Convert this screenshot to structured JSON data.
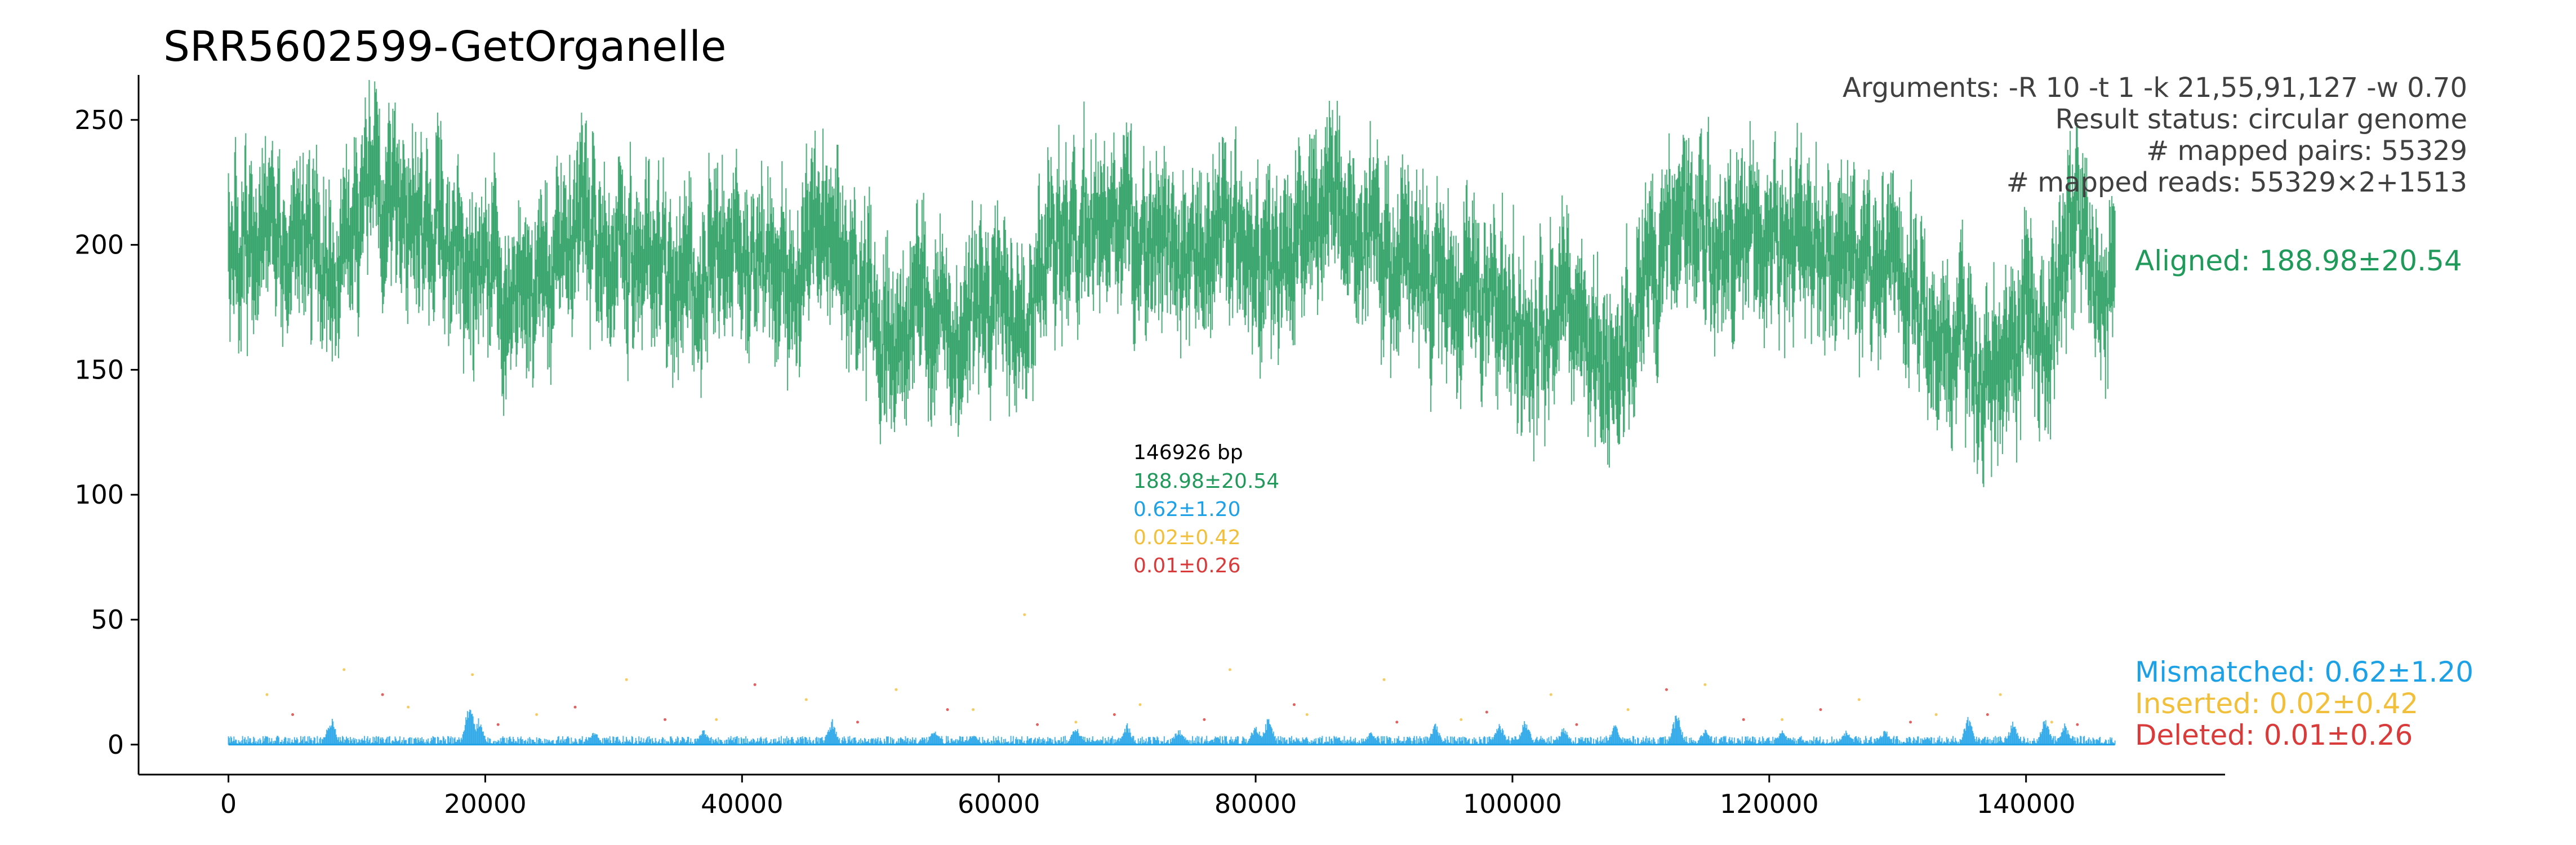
{
  "title": "SRR5602599-GetOrganelle",
  "info_lines": [
    "Arguments: -R 10 -t 1 -k 21,55,91,127 -w 0.70",
    "Result status: circular genome",
    "# mapped pairs: 55329",
    "# mapped reads: 55329×2+1513"
  ],
  "colors": {
    "aligned": "#1f9a5a",
    "mismatched": "#1da1e6",
    "inserted": "#f2bf3a",
    "deleted": "#d93a3a",
    "axis": "#000000",
    "info": "#404040"
  },
  "legend": {
    "aligned": "Aligned: 188.98±20.54",
    "mismatched": "Mismatched: 0.62±1.20",
    "inserted": "Inserted: 0.02±0.42",
    "deleted": "Deleted: 0.01±0.26"
  },
  "summary": {
    "length": "146926 bp",
    "aligned": "188.98±20.54",
    "mismatched": "0.62±1.20",
    "inserted": "0.02±0.42",
    "deleted": "0.01±0.26"
  },
  "chart_data": {
    "type": "scatter",
    "title": "SRR5602599-GetOrganelle",
    "xlabel": "",
    "ylabel": "",
    "xlim": [
      -7000,
      155500
    ],
    "ylim": [
      -12,
      268
    ],
    "x_ticks": [
      0,
      20000,
      40000,
      60000,
      80000,
      100000,
      120000,
      140000
    ],
    "y_ticks": [
      0,
      50,
      100,
      150,
      200,
      250
    ],
    "x_tick_labels": [
      "0",
      "20000",
      "40000",
      "60000",
      "80000",
      "100000",
      "120000",
      "140000"
    ],
    "y_tick_labels": [
      "0",
      "50",
      "100",
      "150",
      "200",
      "250"
    ],
    "grid": false,
    "legend_placement": "right",
    "genome_length": 146926,
    "series": [
      {
        "name": "Aligned",
        "color": "#1f9a5a",
        "mean": 188.98,
        "sd": 20.54,
        "profile": [
          [
            0,
            195
          ],
          [
            3000,
            200
          ],
          [
            6000,
            205
          ],
          [
            9000,
            195
          ],
          [
            11000,
            225
          ],
          [
            13000,
            210
          ],
          [
            16000,
            205
          ],
          [
            19000,
            190
          ],
          [
            22000,
            180
          ],
          [
            25000,
            185
          ],
          [
            27000,
            210
          ],
          [
            30000,
            200
          ],
          [
            33000,
            195
          ],
          [
            36000,
            180
          ],
          [
            38000,
            195
          ],
          [
            40000,
            200
          ],
          [
            42000,
            185
          ],
          [
            44000,
            190
          ],
          [
            46000,
            205
          ],
          [
            48000,
            190
          ],
          [
            50000,
            175
          ],
          [
            52000,
            165
          ],
          [
            54000,
            175
          ],
          [
            56000,
            165
          ],
          [
            58000,
            170
          ],
          [
            60000,
            175
          ],
          [
            62000,
            180
          ],
          [
            64000,
            200
          ],
          [
            66000,
            205
          ],
          [
            68000,
            215
          ],
          [
            70000,
            210
          ],
          [
            72000,
            200
          ],
          [
            74000,
            195
          ],
          [
            76000,
            195
          ],
          [
            78000,
            205
          ],
          [
            80000,
            185
          ],
          [
            82000,
            195
          ],
          [
            84000,
            205
          ],
          [
            86000,
            215
          ],
          [
            88000,
            210
          ],
          [
            90000,
            200
          ],
          [
            92000,
            190
          ],
          [
            94000,
            185
          ],
          [
            96000,
            175
          ],
          [
            98000,
            185
          ],
          [
            100000,
            170
          ],
          [
            102000,
            160
          ],
          [
            104000,
            175
          ],
          [
            106000,
            160
          ],
          [
            108000,
            150
          ],
          [
            110000,
            175
          ],
          [
            112000,
            205
          ],
          [
            114000,
            215
          ],
          [
            116000,
            200
          ],
          [
            118000,
            205
          ],
          [
            120000,
            200
          ],
          [
            122000,
            205
          ],
          [
            124000,
            195
          ],
          [
            126000,
            200
          ],
          [
            128000,
            185
          ],
          [
            130000,
            190
          ],
          [
            132000,
            170
          ],
          [
            134000,
            165
          ],
          [
            136000,
            155
          ],
          [
            138000,
            150
          ],
          [
            140000,
            175
          ],
          [
            142000,
            165
          ],
          [
            144000,
            215
          ],
          [
            145500,
            180
          ],
          [
            146926,
            185
          ]
        ]
      },
      {
        "name": "Mismatched",
        "color": "#1da1e6",
        "mean": 0.62,
        "sd": 1.2,
        "peaks": [
          [
            8000,
            12
          ],
          [
            18800,
            20
          ],
          [
            19500,
            11
          ],
          [
            28500,
            6
          ],
          [
            37000,
            7
          ],
          [
            47000,
            11
          ],
          [
            55000,
            7
          ],
          [
            58000,
            5
          ],
          [
            66000,
            8
          ],
          [
            70000,
            9
          ],
          [
            74000,
            7
          ],
          [
            80000,
            9
          ],
          [
            81000,
            12
          ],
          [
            89000,
            6
          ],
          [
            94000,
            9
          ],
          [
            99000,
            10
          ],
          [
            101000,
            11
          ],
          [
            104000,
            8
          ],
          [
            108000,
            9
          ],
          [
            112800,
            14
          ],
          [
            115000,
            7
          ],
          [
            121000,
            7
          ],
          [
            126000,
            6
          ],
          [
            129000,
            7
          ],
          [
            135500,
            12
          ],
          [
            139000,
            10
          ],
          [
            141500,
            12
          ],
          [
            143000,
            9
          ]
        ]
      },
      {
        "name": "Inserted",
        "color": "#f2bf3a",
        "mean": 0.02,
        "sd": 0.42,
        "points": [
          [
            3000,
            20
          ],
          [
            9000,
            30
          ],
          [
            14000,
            15
          ],
          [
            19000,
            28
          ],
          [
            24000,
            12
          ],
          [
            31000,
            26
          ],
          [
            38000,
            10
          ],
          [
            45000,
            18
          ],
          [
            52000,
            22
          ],
          [
            58000,
            14
          ],
          [
            62000,
            52
          ],
          [
            66000,
            9
          ],
          [
            71000,
            16
          ],
          [
            78000,
            30
          ],
          [
            84000,
            12
          ],
          [
            90000,
            26
          ],
          [
            96000,
            10
          ],
          [
            103000,
            20
          ],
          [
            109000,
            14
          ],
          [
            115000,
            24
          ],
          [
            121000,
            10
          ],
          [
            127000,
            18
          ],
          [
            133000,
            12
          ],
          [
            138000,
            20
          ],
          [
            142000,
            9
          ]
        ]
      },
      {
        "name": "Deleted",
        "color": "#d93a3a",
        "mean": 0.01,
        "sd": 0.26,
        "points": [
          [
            5000,
            12
          ],
          [
            12000,
            20
          ],
          [
            21000,
            8
          ],
          [
            27000,
            15
          ],
          [
            34000,
            10
          ],
          [
            41000,
            24
          ],
          [
            49000,
            9
          ],
          [
            56000,
            14
          ],
          [
            63000,
            8
          ],
          [
            69000,
            12
          ],
          [
            76000,
            10
          ],
          [
            83000,
            16
          ],
          [
            91000,
            9
          ],
          [
            98000,
            13
          ],
          [
            105000,
            8
          ],
          [
            112000,
            22
          ],
          [
            118000,
            10
          ],
          [
            124000,
            14
          ],
          [
            131000,
            9
          ],
          [
            137000,
            12
          ],
          [
            144000,
            8
          ]
        ]
      }
    ]
  }
}
